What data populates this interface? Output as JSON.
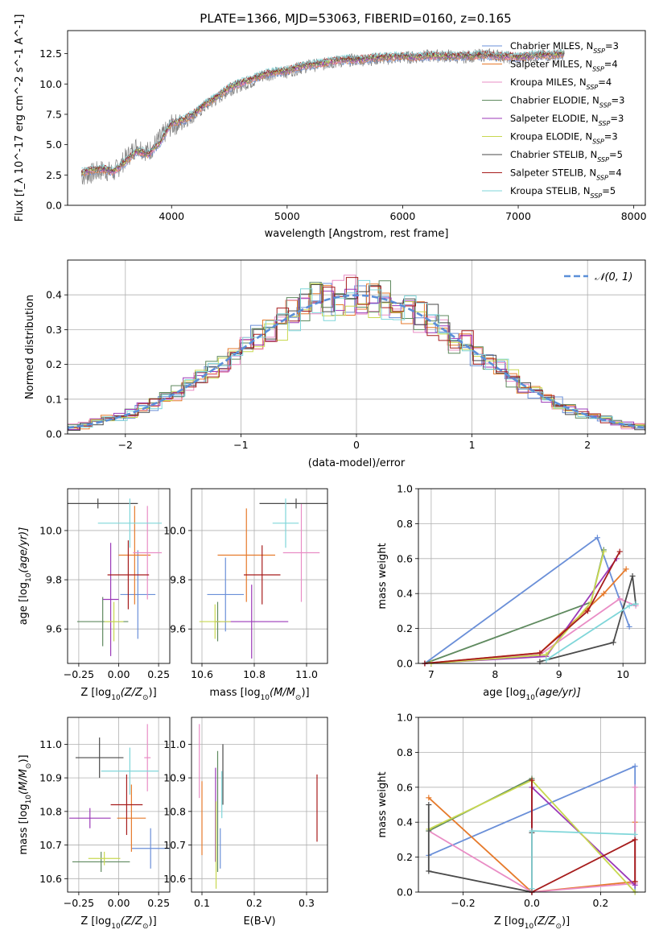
{
  "figure_title": "PLATE=1366, MJD=53063, FIBERID=0160, z=0.165",
  "colors": [
    "#6a8fd8",
    "#e67a2b",
    "#e98dc5",
    "#5f8a5f",
    "#9b39b8",
    "#c8d850",
    "#4a4a4a",
    "#a61c1c",
    "#7fd6d9"
  ],
  "chart_data": [
    {
      "id": "spectrum",
      "type": "line",
      "title": "PLATE=1366, MJD=53063, FIBERID=0160, z=0.165",
      "xlabel": "wavelength [Angstrom, rest frame]",
      "ylabel": "Flux [f_λ 10^-17 erg cm^-2 s^-1 A^-1]",
      "xlim": [
        3100,
        8100
      ],
      "ylim": [
        0,
        14.4
      ],
      "xticks": [
        4000,
        5000,
        6000,
        7000,
        8000
      ],
      "xtick_labels": [
        "4000",
        "5000",
        "6000",
        "7000",
        "8000"
      ],
      "yticks": [
        0,
        2.5,
        5.0,
        7.5,
        10.0,
        12.5
      ],
      "ytick_labels": [
        "0.0",
        "2.5",
        "5.0",
        "7.5",
        "10.0",
        "12.5"
      ],
      "grid": false,
      "legend_position": "right",
      "data_color": "#808080",
      "data_x": [
        3220,
        3300,
        3400,
        3500,
        3600,
        3700,
        3800,
        3900,
        4000,
        4100,
        4200,
        4300,
        4400,
        4500,
        4600,
        4700,
        4800,
        4900,
        5000,
        5100,
        5200,
        5300,
        5400,
        5500,
        5600,
        5700,
        5800,
        5900,
        6000,
        6100,
        6200,
        6300,
        6400,
        6500,
        6600,
        6700,
        6800,
        6900,
        7000,
        7100,
        7200,
        7300,
        7400
      ],
      "data_y": [
        2.4,
        2.6,
        2.9,
        2.7,
        3.8,
        4.9,
        4.4,
        5.5,
        6.6,
        6.8,
        7.4,
        8.2,
        8.8,
        9.5,
        9.9,
        10.2,
        10.7,
        10.9,
        11.0,
        11.3,
        11.5,
        11.6,
        11.8,
        11.9,
        12.0,
        12.0,
        12.1,
        12.1,
        12.2,
        12.2,
        12.3,
        12.3,
        12.3,
        12.2,
        12.3,
        12.4,
        12.4,
        12.2,
        12.1,
        12.3,
        12.3,
        12.4,
        12.4
      ],
      "model_x": [
        3220,
        3300,
        3400,
        3500,
        3600,
        3700,
        3800,
        3900,
        4000,
        4100,
        4200,
        4300,
        4400,
        4500,
        4600,
        4700,
        4800,
        4900,
        5000,
        5100,
        5200,
        5300,
        5400,
        5500,
        5600,
        5700,
        5800,
        5900,
        6000,
        6100,
        6200,
        6300,
        6400,
        6500,
        6600,
        6700,
        6800,
        6900,
        7000,
        7100,
        7200,
        7300,
        7400
      ],
      "model_y": [
        2.7,
        2.9,
        3.0,
        2.8,
        3.6,
        4.5,
        4.2,
        5.2,
        6.8,
        7.0,
        7.6,
        8.4,
        9.0,
        9.7,
        10.1,
        10.4,
        10.8,
        11.0,
        11.1,
        11.4,
        11.6,
        11.7,
        11.9,
        12.0,
        12.0,
        12.1,
        12.2,
        12.2,
        12.3,
        12.2,
        12.3,
        12.3,
        12.3,
        12.3,
        12.3,
        12.4,
        12.3,
        12.3,
        12.2,
        12.3,
        12.4,
        12.4,
        12.5
      ],
      "series": [
        {
          "name": "Chabrier MILES, N_SSP=3",
          "label_prefix": "Chabrier MILES, N",
          "label_sub": "SSP",
          "label_suffix": "=3"
        },
        {
          "name": "Salpeter MILES, N_SSP=4",
          "label_prefix": "Salpeter MILES, N",
          "label_sub": "SSP",
          "label_suffix": "=4"
        },
        {
          "name": "Kroupa MILES, N_SSP=4",
          "label_prefix": "Kroupa MILES, N",
          "label_sub": "SSP",
          "label_suffix": "=4"
        },
        {
          "name": "Chabrier ELODIE, N_SSP=3",
          "label_prefix": "Chabrier ELODIE, N",
          "label_sub": "SSP",
          "label_suffix": "=3"
        },
        {
          "name": "Salpeter ELODIE, N_SSP=3",
          "label_prefix": "Salpeter ELODIE, N",
          "label_sub": "SSP",
          "label_suffix": "=3"
        },
        {
          "name": "Kroupa ELODIE, N_SSP=3",
          "label_prefix": "Kroupa ELODIE, N",
          "label_sub": "SSP",
          "label_suffix": "=3"
        },
        {
          "name": "Chabrier STELIB, N_SSP=5",
          "label_prefix": "Chabrier STELIB, N",
          "label_sub": "SSP",
          "label_suffix": "=5"
        },
        {
          "name": "Salpeter STELIB, N_SSP=4",
          "label_prefix": "Salpeter STELIB, N",
          "label_sub": "SSP",
          "label_suffix": "=4"
        },
        {
          "name": "Kroupa STELIB, N_SSP=5",
          "label_prefix": "Kroupa STELIB, N",
          "label_sub": "SSP",
          "label_suffix": "=5"
        }
      ]
    },
    {
      "id": "residuals",
      "type": "line",
      "xlabel": "(data-model)/error",
      "ylabel": "Normed distribution",
      "xlim": [
        -2.5,
        2.5
      ],
      "ylim": [
        0,
        0.5
      ],
      "xticks": [
        -2,
        -1,
        0,
        1,
        2
      ],
      "xtick_labels": [
        "−2",
        "−1",
        "0",
        "1",
        "2"
      ],
      "yticks": [
        0,
        0.1,
        0.2,
        0.3,
        0.4
      ],
      "ytick_labels": [
        "0.0",
        "0.1",
        "0.2",
        "0.3",
        "0.4"
      ],
      "grid": true,
      "legend_position": "top-right",
      "reference_curve": {
        "name": "N(0,1)",
        "label": "𝒩(0, 1)",
        "type": "gaussian",
        "mean": 0,
        "sigma": 1,
        "color": "#5b8fd8"
      }
    },
    {
      "id": "age_vs_Z",
      "type": "scatter",
      "xlabel_main": "Z [log",
      "xlabel_sub": "10",
      "xlabel_rest": "(Z/Z",
      "xlabel_sun": "⊙",
      "xlabel_end": ")]",
      "ylabel_main": "age  [log",
      "ylabel_sub": "10",
      "ylabel_rest": "(age/yr)]",
      "xlim": [
        -0.32,
        0.32
      ],
      "ylim": [
        9.46,
        10.17
      ],
      "xticks": [
        -0.25,
        0.0,
        0.25
      ],
      "xtick_labels": [
        "−0.25",
        "0.00",
        "0.25"
      ],
      "yticks": [
        9.6,
        9.8,
        10.0
      ],
      "ytick_labels": [
        "9.6",
        "9.8",
        "10.0"
      ],
      "grid": true,
      "points": [
        {
          "series": 0,
          "x": 0.12,
          "y": 9.74,
          "xerr": 0.11,
          "yerr": 0.18
        },
        {
          "series": 1,
          "x": 0.1,
          "y": 9.9,
          "xerr": 0.1,
          "yerr": 0.2
        },
        {
          "series": 2,
          "x": 0.18,
          "y": 9.91,
          "xerr": 0.09,
          "yerr": 0.19
        },
        {
          "series": 3,
          "x": -0.1,
          "y": 9.63,
          "xerr": 0.16,
          "yerr": 0.1
        },
        {
          "series": 4,
          "x": -0.05,
          "y": 9.72,
          "xerr": 0.05,
          "yerr": 0.23
        },
        {
          "series": 5,
          "x": -0.03,
          "y": 9.63,
          "xerr": 0.06,
          "yerr": 0.08
        },
        {
          "series": 6,
          "x": -0.13,
          "y": 10.11,
          "xerr": 0.25,
          "yerr": 0.02
        },
        {
          "series": 7,
          "x": 0.06,
          "y": 9.82,
          "xerr": 0.13,
          "yerr": 0.14
        },
        {
          "series": 8,
          "x": 0.07,
          "y": 10.03,
          "xerr": 0.2,
          "yerr": 0.1
        }
      ]
    },
    {
      "id": "age_vs_mass",
      "type": "scatter",
      "xlabel_main": "mass [log",
      "xlabel_sub": "10",
      "xlabel_rest": "(M/M",
      "xlabel_sun": "⊙",
      "xlabel_end": ")]",
      "xlim": [
        10.56,
        11.08
      ],
      "ylim": [
        9.46,
        10.17
      ],
      "xticks": [
        10.6,
        10.8,
        11.0
      ],
      "xtick_labels": [
        "10.6",
        "10.8",
        "11.0"
      ],
      "yticks": [
        9.6,
        9.8,
        10.0
      ],
      "ytick_labels": [
        "9.6",
        "9.8",
        "10.0"
      ],
      "grid": true,
      "points": [
        {
          "series": 0,
          "x": 10.69,
          "y": 9.74,
          "xerr": 0.07,
          "yerr": 0.15
        },
        {
          "series": 1,
          "x": 10.77,
          "y": 9.9,
          "xerr": 0.11,
          "yerr": 0.19
        },
        {
          "series": 2,
          "x": 10.98,
          "y": 9.91,
          "xerr": 0.07,
          "yerr": 0.2
        },
        {
          "series": 3,
          "x": 10.66,
          "y": 9.63,
          "xerr": 0.01,
          "yerr": 0.08
        },
        {
          "series": 4,
          "x": 10.79,
          "y": 9.63,
          "xerr": 0.14,
          "yerr": 0.15
        },
        {
          "series": 5,
          "x": 10.65,
          "y": 9.63,
          "xerr": 0.06,
          "yerr": 0.07
        },
        {
          "series": 6,
          "x": 10.96,
          "y": 10.11,
          "xerr": 0.14,
          "yerr": 0.02
        },
        {
          "series": 7,
          "x": 10.83,
          "y": 9.82,
          "xerr": 0.07,
          "yerr": 0.12
        },
        {
          "series": 8,
          "x": 10.92,
          "y": 10.03,
          "xerr": 0.05,
          "yerr": 0.1
        }
      ]
    },
    {
      "id": "massweight_vs_age",
      "type": "line",
      "ylabel": "mass weight",
      "xlabel_main": "age  [log",
      "xlabel_sub": "10",
      "xlabel_rest": "(age/yr)]",
      "xlim": [
        6.8,
        10.35
      ],
      "ylim": [
        0,
        1.0
      ],
      "xticks": [
        7,
        8,
        9,
        10
      ],
      "xtick_labels": [
        "7",
        "8",
        "9",
        "10"
      ],
      "yticks": [
        0,
        0.2,
        0.4,
        0.6,
        0.8,
        1.0
      ],
      "ytick_labels": [
        "0.0",
        "0.2",
        "0.4",
        "0.6",
        "0.8",
        "1.0"
      ],
      "grid": true,
      "series": [
        {
          "series": 0,
          "x": [
            6.9,
            9.6,
            10.1
          ],
          "y": [
            0.0,
            0.72,
            0.21
          ]
        },
        {
          "series": 1,
          "x": [
            6.9,
            8.7,
            9.7,
            10.05
          ],
          "y": [
            0.0,
            0.06,
            0.4,
            0.54
          ]
        },
        {
          "series": 2,
          "x": [
            6.9,
            8.7,
            9.95,
            10.2
          ],
          "y": [
            0.0,
            0.05,
            0.37,
            0.33
          ]
        },
        {
          "series": 3,
          "x": [
            6.9,
            9.5,
            9.7
          ],
          "y": [
            0.0,
            0.35,
            0.65
          ]
        },
        {
          "series": 4,
          "x": [
            6.9,
            8.8,
            9.9
          ],
          "y": [
            0.0,
            0.04,
            0.6
          ]
        },
        {
          "series": 5,
          "x": [
            7.0,
            8.8,
            9.5,
            9.7
          ],
          "y": [
            0.0,
            0.05,
            0.35,
            0.64
          ]
        },
        {
          "series": 6,
          "x": [
            8.7,
            9.85,
            10.15,
            10.2
          ],
          "y": [
            0.01,
            0.12,
            0.5,
            0.34
          ]
        },
        {
          "series": 7,
          "x": [
            6.9,
            8.7,
            9.45,
            9.95
          ],
          "y": [
            0.0,
            0.06,
            0.3,
            0.64
          ]
        },
        {
          "series": 8,
          "x": [
            8.8,
            10.1,
            10.2
          ],
          "y": [
            0.02,
            0.33,
            0.34
          ]
        }
      ]
    },
    {
      "id": "mass_vs_Z",
      "type": "scatter",
      "xlabel_main": "Z [log",
      "xlabel_sub": "10",
      "xlabel_rest": "(Z/Z",
      "xlabel_sun": "⊙",
      "xlabel_end": ")]",
      "ylabel_main": "mass [log",
      "ylabel_sub": "10",
      "ylabel_rest": "(M/M",
      "ylabel_sun": "⊙",
      "ylabel_end": ")]",
      "xlim": [
        -0.32,
        0.32
      ],
      "ylim": [
        10.56,
        11.08
      ],
      "xticks": [
        -0.25,
        0.0,
        0.25
      ],
      "xtick_labels": [
        "−0.25",
        "0.00",
        "0.25"
      ],
      "yticks": [
        10.6,
        10.7,
        10.8,
        10.9,
        11.0
      ],
      "ytick_labels": [
        "10.6",
        "10.7",
        "10.8",
        "10.9",
        "11.0"
      ],
      "grid": true,
      "points": [
        {
          "series": 0,
          "x": 0.2,
          "y": 10.69,
          "xerr": 0.12,
          "yerr": 0.06
        },
        {
          "series": 1,
          "x": 0.08,
          "y": 10.78,
          "xerr": 0.09,
          "yerr": 0.1
        },
        {
          "series": 2,
          "x": 0.18,
          "y": 10.96,
          "xerr": 0.02,
          "yerr": 0.1
        },
        {
          "series": 3,
          "x": -0.11,
          "y": 10.65,
          "xerr": 0.18,
          "yerr": 0.03
        },
        {
          "series": 4,
          "x": -0.18,
          "y": 10.78,
          "xerr": 0.13,
          "yerr": 0.03
        },
        {
          "series": 5,
          "x": -0.09,
          "y": 10.66,
          "xerr": 0.1,
          "yerr": 0.02
        },
        {
          "series": 6,
          "x": -0.12,
          "y": 10.96,
          "xerr": 0.15,
          "yerr": 0.06
        },
        {
          "series": 7,
          "x": 0.05,
          "y": 10.82,
          "xerr": 0.1,
          "yerr": 0.09
        },
        {
          "series": 8,
          "x": 0.07,
          "y": 10.92,
          "xerr": 0.18,
          "yerr": 0.07
        }
      ]
    },
    {
      "id": "mass_vs_ebv",
      "type": "scatter",
      "xlabel": "E(B-V)",
      "xlim": [
        0.08,
        0.34
      ],
      "ylim": [
        10.56,
        11.08
      ],
      "xticks": [
        0.1,
        0.2,
        0.3
      ],
      "xtick_labels": [
        "0.1",
        "0.2",
        "0.3"
      ],
      "yticks": [
        10.6,
        10.7,
        10.8,
        10.9,
        11.0
      ],
      "ytick_labels": [
        "10.6",
        "10.7",
        "10.8",
        "10.9",
        "11.0"
      ],
      "grid": true,
      "points": [
        {
          "series": 0,
          "x": 0.135,
          "y": 10.69,
          "xerr": 0,
          "yerr": 0.06
        },
        {
          "series": 1,
          "x": 0.1,
          "y": 10.78,
          "xerr": 0,
          "yerr": 0.11
        },
        {
          "series": 2,
          "x": 0.095,
          "y": 10.95,
          "xerr": 0,
          "yerr": 0.11
        },
        {
          "series": 3,
          "x": 0.13,
          "y": 10.8,
          "xerr": 0,
          "yerr": 0.18
        },
        {
          "series": 4,
          "x": 0.126,
          "y": 10.79,
          "xerr": 0,
          "yerr": 0.14
        },
        {
          "series": 5,
          "x": 0.127,
          "y": 10.7,
          "xerr": 0,
          "yerr": 0.13
        },
        {
          "series": 6,
          "x": 0.14,
          "y": 10.91,
          "xerr": 0,
          "yerr": 0.09
        },
        {
          "series": 7,
          "x": 0.32,
          "y": 10.81,
          "xerr": 0,
          "yerr": 0.1
        },
        {
          "series": 8,
          "x": 0.138,
          "y": 10.85,
          "xerr": 0,
          "yerr": 0.07
        }
      ]
    },
    {
      "id": "massweight_vs_Z",
      "type": "line",
      "ylabel": "mass weight",
      "xlabel_main": "Z [log",
      "xlabel_sub": "10",
      "xlabel_rest": "(Z/Z",
      "xlabel_sun": "⊙",
      "xlabel_end": ")]",
      "xlim": [
        -0.33,
        0.33
      ],
      "ylim": [
        0,
        1.0
      ],
      "xticks": [
        -0.2,
        0.0,
        0.2
      ],
      "xtick_labels": [
        "−0.2",
        "0.0",
        "0.2"
      ],
      "yticks": [
        0,
        0.2,
        0.4,
        0.6,
        0.8,
        1.0
      ],
      "ytick_labels": [
        "0.0",
        "0.2",
        "0.4",
        "0.6",
        "0.8",
        "1.0"
      ],
      "grid": true,
      "series": [
        {
          "series": 0,
          "x": [
            -0.3,
            0.3,
            0.3
          ],
          "y": [
            0.21,
            0.72,
            0.0
          ]
        },
        {
          "series": 1,
          "x": [
            -0.3,
            0.0,
            0.3,
            0.3
          ],
          "y": [
            0.54,
            0.0,
            0.06,
            0.4
          ]
        },
        {
          "series": 2,
          "x": [
            -0.3,
            0.0,
            0.3,
            0.3
          ],
          "y": [
            0.35,
            0.0,
            0.05,
            0.6
          ]
        },
        {
          "series": 3,
          "x": [
            -0.3,
            0.0,
            0.0
          ],
          "y": [
            0.35,
            0.65,
            0.0
          ]
        },
        {
          "series": 4,
          "x": [
            0.0,
            0.0,
            0.3
          ],
          "y": [
            0.0,
            0.6,
            0.04
          ]
        },
        {
          "series": 5,
          "x": [
            -0.3,
            0.0,
            0.3
          ],
          "y": [
            0.36,
            0.64,
            0.0
          ]
        },
        {
          "series": 6,
          "x": [
            -0.3,
            -0.3,
            0.0,
            0.0
          ],
          "y": [
            0.5,
            0.12,
            0.0,
            0.34
          ]
        },
        {
          "series": 7,
          "x": [
            0.0,
            0.0,
            0.3,
            0.3
          ],
          "y": [
            0.64,
            0.0,
            0.3,
            0.06
          ]
        },
        {
          "series": 8,
          "x": [
            0.0,
            0.0,
            0.3
          ],
          "y": [
            0.02,
            0.35,
            0.33
          ]
        }
      ]
    }
  ]
}
